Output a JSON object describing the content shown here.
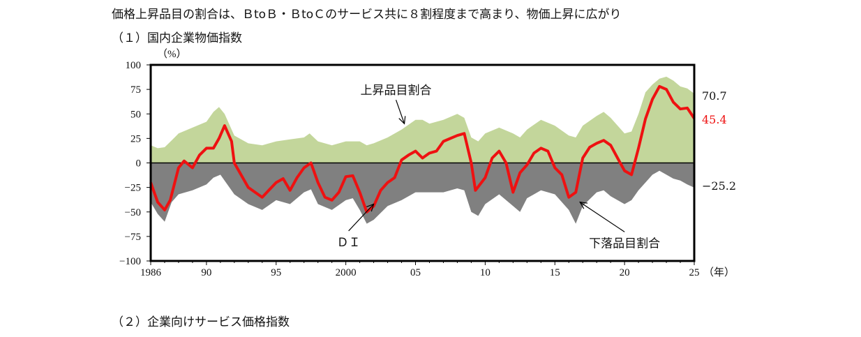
{
  "page": {
    "title": "価格上昇品目の割合は、ＢtoＢ・ＢtoＣのサービス共に８割程度まで高まり、物価上昇に広がり",
    "section1": "（１）国内企業物価指数",
    "section2": "（２）企業向けサービス価格指数"
  },
  "colors": {
    "rise_area": "#c3d69b",
    "fall_area": "#808080",
    "di_line": "#ee1111",
    "frame": "#000000"
  },
  "chart_data": {
    "type": "area",
    "unit_label": "（%）",
    "x_unit_label": "（年）",
    "xlim": [
      1986,
      2025
    ],
    "ylim": [
      -100,
      100
    ],
    "x_ticks": [
      1986,
      1990,
      1995,
      2000,
      2005,
      2010,
      2015,
      2020,
      2025
    ],
    "x_tick_labels": [
      "1986",
      "90",
      "95",
      "2000",
      "05",
      "10",
      "15",
      "20",
      "25"
    ],
    "y_ticks": [
      100,
      75,
      50,
      25,
      0,
      -25,
      -50,
      -75,
      -100
    ],
    "y_tick_labels": [
      "100",
      "75",
      "50",
      "25",
      "0",
      "−25",
      "−50",
      "−75",
      "−100"
    ],
    "series": [
      {
        "name": "上昇品目割合",
        "kind": "area",
        "last_label": "70.7",
        "points": [
          [
            1986,
            18
          ],
          [
            1986.5,
            15
          ],
          [
            1987,
            16
          ],
          [
            1987.5,
            23
          ],
          [
            1988,
            30
          ],
          [
            1989,
            36
          ],
          [
            1990,
            42
          ],
          [
            1990.5,
            52
          ],
          [
            1990.9,
            57
          ],
          [
            1991.3,
            50
          ],
          [
            1992,
            28
          ],
          [
            1993,
            20
          ],
          [
            1994,
            18
          ],
          [
            1995,
            22
          ],
          [
            1996,
            24
          ],
          [
            1997,
            26
          ],
          [
            1997.4,
            30
          ],
          [
            1998,
            22
          ],
          [
            1999,
            18
          ],
          [
            2000,
            22
          ],
          [
            2001,
            22
          ],
          [
            2001.5,
            18
          ],
          [
            2002,
            20
          ],
          [
            2003,
            26
          ],
          [
            2004,
            34
          ],
          [
            2005,
            44
          ],
          [
            2005.5,
            44
          ],
          [
            2006,
            40
          ],
          [
            2007,
            44
          ],
          [
            2008,
            50
          ],
          [
            2008.5,
            46
          ],
          [
            2009,
            26
          ],
          [
            2009.5,
            22
          ],
          [
            2010,
            30
          ],
          [
            2011,
            36
          ],
          [
            2012,
            30
          ],
          [
            2012.5,
            26
          ],
          [
            2013,
            34
          ],
          [
            2014,
            44
          ],
          [
            2015,
            38
          ],
          [
            2016,
            28
          ],
          [
            2016.5,
            26
          ],
          [
            2017,
            38
          ],
          [
            2018,
            48
          ],
          [
            2018.5,
            52
          ],
          [
            2019,
            46
          ],
          [
            2020,
            30
          ],
          [
            2020.5,
            32
          ],
          [
            2021,
            50
          ],
          [
            2021.5,
            72
          ],
          [
            2022,
            80
          ],
          [
            2022.5,
            86
          ],
          [
            2023,
            88
          ],
          [
            2023.5,
            84
          ],
          [
            2024,
            78
          ],
          [
            2024.5,
            76
          ],
          [
            2025,
            70.7
          ]
        ]
      },
      {
        "name": "下落品目割合",
        "kind": "area",
        "last_label": "−25.2",
        "points": [
          [
            1986,
            -40
          ],
          [
            1986.5,
            -52
          ],
          [
            1987,
            -60
          ],
          [
            1987.5,
            -40
          ],
          [
            1988,
            -32
          ],
          [
            1989,
            -28
          ],
          [
            1990,
            -22
          ],
          [
            1990.5,
            -15
          ],
          [
            1991,
            -12
          ],
          [
            1992,
            -32
          ],
          [
            1993,
            -42
          ],
          [
            1994,
            -48
          ],
          [
            1995,
            -38
          ],
          [
            1996,
            -42
          ],
          [
            1997,
            -30
          ],
          [
            1997.5,
            -27
          ],
          [
            1998,
            -42
          ],
          [
            1999,
            -48
          ],
          [
            2000,
            -38
          ],
          [
            2000.5,
            -36
          ],
          [
            2001,
            -48
          ],
          [
            2001.5,
            -62
          ],
          [
            2002,
            -58
          ],
          [
            2003,
            -44
          ],
          [
            2004,
            -38
          ],
          [
            2005,
            -30
          ],
          [
            2006,
            -30
          ],
          [
            2007,
            -30
          ],
          [
            2008,
            -26
          ],
          [
            2008.5,
            -28
          ],
          [
            2009,
            -50
          ],
          [
            2009.5,
            -54
          ],
          [
            2010,
            -42
          ],
          [
            2011,
            -32
          ],
          [
            2012,
            -44
          ],
          [
            2012.5,
            -50
          ],
          [
            2013,
            -36
          ],
          [
            2014,
            -28
          ],
          [
            2015,
            -32
          ],
          [
            2016,
            -48
          ],
          [
            2016.5,
            -62
          ],
          [
            2017,
            -44
          ],
          [
            2018,
            -30
          ],
          [
            2018.5,
            -28
          ],
          [
            2019,
            -34
          ],
          [
            2020,
            -42
          ],
          [
            2020.5,
            -38
          ],
          [
            2021,
            -28
          ],
          [
            2022,
            -12
          ],
          [
            2022.5,
            -8
          ],
          [
            2023,
            -12
          ],
          [
            2023.5,
            -16
          ],
          [
            2024,
            -18
          ],
          [
            2024.5,
            -22
          ],
          [
            2025,
            -25.2
          ]
        ]
      },
      {
        "name": "ＤＩ",
        "kind": "line",
        "last_label": "45.4",
        "points": [
          [
            1986,
            -20
          ],
          [
            1986.5,
            -40
          ],
          [
            1987,
            -48
          ],
          [
            1987.4,
            -38
          ],
          [
            1988,
            -5
          ],
          [
            1988.4,
            2
          ],
          [
            1989,
            -5
          ],
          [
            1989.5,
            8
          ],
          [
            1990,
            15
          ],
          [
            1990.5,
            15
          ],
          [
            1990.9,
            25
          ],
          [
            1991.3,
            38
          ],
          [
            1991.8,
            22
          ],
          [
            1992,
            0
          ],
          [
            1993,
            -25
          ],
          [
            1994,
            -35
          ],
          [
            1995,
            -20
          ],
          [
            1995.5,
            -16
          ],
          [
            1996,
            -28
          ],
          [
            1996.5,
            -15
          ],
          [
            1997,
            -5
          ],
          [
            1997.5,
            0
          ],
          [
            1998,
            -20
          ],
          [
            1998.5,
            -35
          ],
          [
            1999,
            -38
          ],
          [
            1999.5,
            -30
          ],
          [
            2000,
            -14
          ],
          [
            2000.5,
            -13
          ],
          [
            2001,
            -30
          ],
          [
            2001.5,
            -50
          ],
          [
            2002,
            -44
          ],
          [
            2002.5,
            -28
          ],
          [
            2003,
            -20
          ],
          [
            2003.5,
            -15
          ],
          [
            2004,
            3
          ],
          [
            2004.5,
            8
          ],
          [
            2005,
            12
          ],
          [
            2005.5,
            5
          ],
          [
            2006,
            10
          ],
          [
            2006.5,
            12
          ],
          [
            2007,
            22
          ],
          [
            2007.5,
            25
          ],
          [
            2008,
            28
          ],
          [
            2008.5,
            30
          ],
          [
            2009,
            0
          ],
          [
            2009.3,
            -28
          ],
          [
            2010,
            -15
          ],
          [
            2010.5,
            5
          ],
          [
            2011,
            12
          ],
          [
            2011.5,
            0
          ],
          [
            2012,
            -30
          ],
          [
            2012.5,
            -10
          ],
          [
            2013,
            -2
          ],
          [
            2013.5,
            10
          ],
          [
            2014,
            15
          ],
          [
            2014.5,
            12
          ],
          [
            2015,
            -5
          ],
          [
            2015.5,
            -12
          ],
          [
            2016,
            -35
          ],
          [
            2016.5,
            -30
          ],
          [
            2017,
            5
          ],
          [
            2017.5,
            16
          ],
          [
            2018,
            20
          ],
          [
            2018.5,
            23
          ],
          [
            2019,
            18
          ],
          [
            2019.5,
            5
          ],
          [
            2020,
            -8
          ],
          [
            2020.5,
            -12
          ],
          [
            2021,
            15
          ],
          [
            2021.5,
            45
          ],
          [
            2022,
            65
          ],
          [
            2022.5,
            78
          ],
          [
            2023,
            75
          ],
          [
            2023.5,
            62
          ],
          [
            2024,
            55
          ],
          [
            2024.5,
            56
          ],
          [
            2025,
            45.4
          ]
        ]
      }
    ],
    "annotations": [
      {
        "text": "上昇品目割合",
        "x": 2003.6,
        "y": 70,
        "arrow_to": [
          2004.2,
          40
        ]
      },
      {
        "text": "ＤＩ",
        "x": 2000.2,
        "y": -85,
        "arrow_to": [
          2002.0,
          -42
        ]
      },
      {
        "text": "下落品目割合",
        "x": 2020.0,
        "y": -86,
        "arrow_to": [
          2016.8,
          -40
        ]
      }
    ]
  }
}
